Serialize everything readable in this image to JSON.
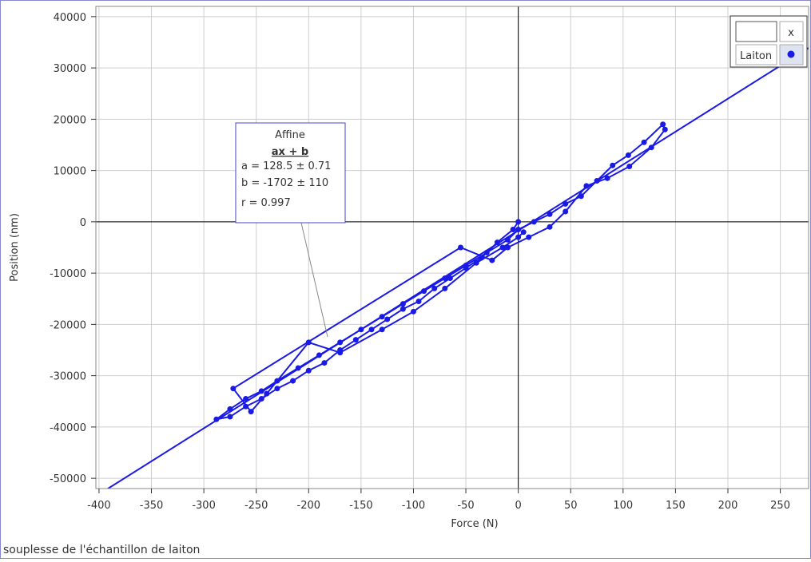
{
  "chart_data": {
    "type": "line",
    "x_label": "Force (N)",
    "y_label": "Position (nm)",
    "caption": "souplesse de l'échantillon de laiton",
    "xlim": [
      -403,
      277
    ],
    "ylim": [
      -52000,
      42000
    ],
    "xticks": [
      -400,
      -350,
      -300,
      -250,
      -200,
      -150,
      -100,
      -50,
      0,
      50,
      100,
      150,
      200,
      250
    ],
    "yticks": [
      -50000,
      -40000,
      -30000,
      -20000,
      -10000,
      0,
      10000,
      20000,
      30000,
      40000
    ],
    "grid": true,
    "legend_header": "x",
    "series": [
      {
        "name": "Laiton",
        "color": "#1a1ae6",
        "x": [
          0,
          -5,
          -20,
          -35,
          -50,
          -65,
          -80,
          -95,
          -110,
          -125,
          -140,
          -155,
          -170,
          -185,
          -200,
          -215,
          -230,
          -245,
          -260,
          -275,
          -288,
          -275,
          -260,
          -245,
          -230,
          -210,
          -190,
          -170,
          -150,
          -130,
          -110,
          -90,
          -70,
          -50,
          -30,
          -10,
          0,
          15,
          30,
          45,
          60,
          75,
          90,
          105,
          120,
          138,
          140,
          127,
          106,
          85,
          65,
          45,
          30,
          10,
          -10,
          -25,
          -55,
          -272,
          -255,
          -240,
          -200,
          -170,
          -130,
          -100,
          -70,
          -40,
          -15,
          0,
          5
        ],
        "values": [
          0,
          -1500,
          -4000,
          -7000,
          -9000,
          -11000,
          -13000,
          -15500,
          -17000,
          -19000,
          -21000,
          -23000,
          -25000,
          -27500,
          -29000,
          -31000,
          -32500,
          -34500,
          -36000,
          -38000,
          -38500,
          -36500,
          -34500,
          -33000,
          -31000,
          -28500,
          -26000,
          -23500,
          -21000,
          -18500,
          -16000,
          -13500,
          -11000,
          -8500,
          -6000,
          -3500,
          -1500,
          0,
          1500,
          3500,
          5000,
          8000,
          11000,
          13000,
          15500,
          19000,
          18000,
          14500,
          10800,
          8500,
          7000,
          2000,
          -1000,
          -3000,
          -5000,
          -7500,
          -5000,
          -32500,
          -37000,
          -33500,
          -23500,
          -25500,
          -21000,
          -17500,
          -13000,
          -8000,
          -5000,
          -3000,
          -2000
        ]
      }
    ],
    "fit": {
      "slope": 128.5,
      "intercept": -1702,
      "title": "Affine",
      "model": "ax + b",
      "lines": [
        "a = 128.5 ± 0.71",
        "b = -1702 ± 110",
        "r = 0.997"
      ]
    }
  }
}
